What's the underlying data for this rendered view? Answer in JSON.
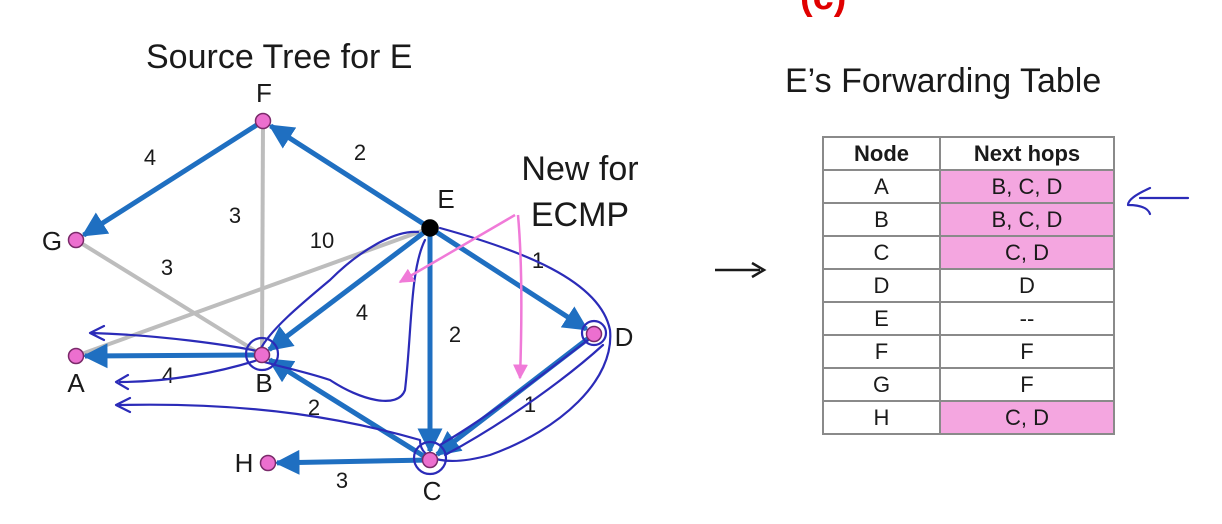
{
  "header_fragment": "(c)",
  "tree_title": "Source Tree for E",
  "table_title": "E’s Forwarding Table",
  "ecmp_note": [
    "New for",
    "ECMP"
  ],
  "colors": {
    "tree_edge": "#1f6fc1",
    "other_edge": "#bdbdbd",
    "node_fill": "#ec6fcf",
    "root_fill": "#000000",
    "annotation_pen": "#2b2bb8",
    "ecmp_arrow": "#f07ad8",
    "highlight": "#f4a6e0"
  },
  "graph": {
    "nodes": [
      {
        "id": "F",
        "label": "F",
        "root": false
      },
      {
        "id": "G",
        "label": "G",
        "root": false
      },
      {
        "id": "E",
        "label": "E",
        "root": true
      },
      {
        "id": "A",
        "label": "A",
        "root": false
      },
      {
        "id": "B",
        "label": "B",
        "root": false
      },
      {
        "id": "D",
        "label": "D",
        "root": false
      },
      {
        "id": "H",
        "label": "H",
        "root": false
      },
      {
        "id": "C",
        "label": "C",
        "root": false
      }
    ],
    "edges": [
      {
        "from": "E",
        "to": "F",
        "weight": "2",
        "tree": true
      },
      {
        "from": "F",
        "to": "G",
        "weight": "4",
        "tree": true
      },
      {
        "from": "F",
        "to": "B",
        "weight": "3",
        "tree": false
      },
      {
        "from": "G",
        "to": "B",
        "weight": "3",
        "tree": false
      },
      {
        "from": "E",
        "to": "A",
        "weight": "10",
        "tree": false
      },
      {
        "from": "E",
        "to": "B",
        "weight": "4",
        "tree": true
      },
      {
        "from": "E",
        "to": "C",
        "weight": "2",
        "tree": true
      },
      {
        "from": "E",
        "to": "D",
        "weight": "1",
        "tree": true
      },
      {
        "from": "B",
        "to": "A",
        "weight": "4",
        "tree": true
      },
      {
        "from": "C",
        "to": "B",
        "weight": "2",
        "tree": true
      },
      {
        "from": "D",
        "to": "C",
        "weight": "1",
        "tree": true
      },
      {
        "from": "C",
        "to": "H",
        "weight": "3",
        "tree": true
      }
    ]
  },
  "table": {
    "headers": [
      "Node",
      "Next hops"
    ],
    "rows": [
      {
        "node": "A",
        "next": "B, C, D",
        "highlight": true
      },
      {
        "node": "B",
        "next": "B, C, D",
        "highlight": true
      },
      {
        "node": "C",
        "next": "C, D",
        "highlight": true
      },
      {
        "node": "D",
        "next": "D",
        "highlight": false
      },
      {
        "node": "E",
        "next": "--",
        "highlight": false
      },
      {
        "node": "F",
        "next": "F",
        "highlight": false
      },
      {
        "node": "G",
        "next": "F",
        "highlight": false
      },
      {
        "node": "H",
        "next": "C, D",
        "highlight": true
      }
    ]
  }
}
